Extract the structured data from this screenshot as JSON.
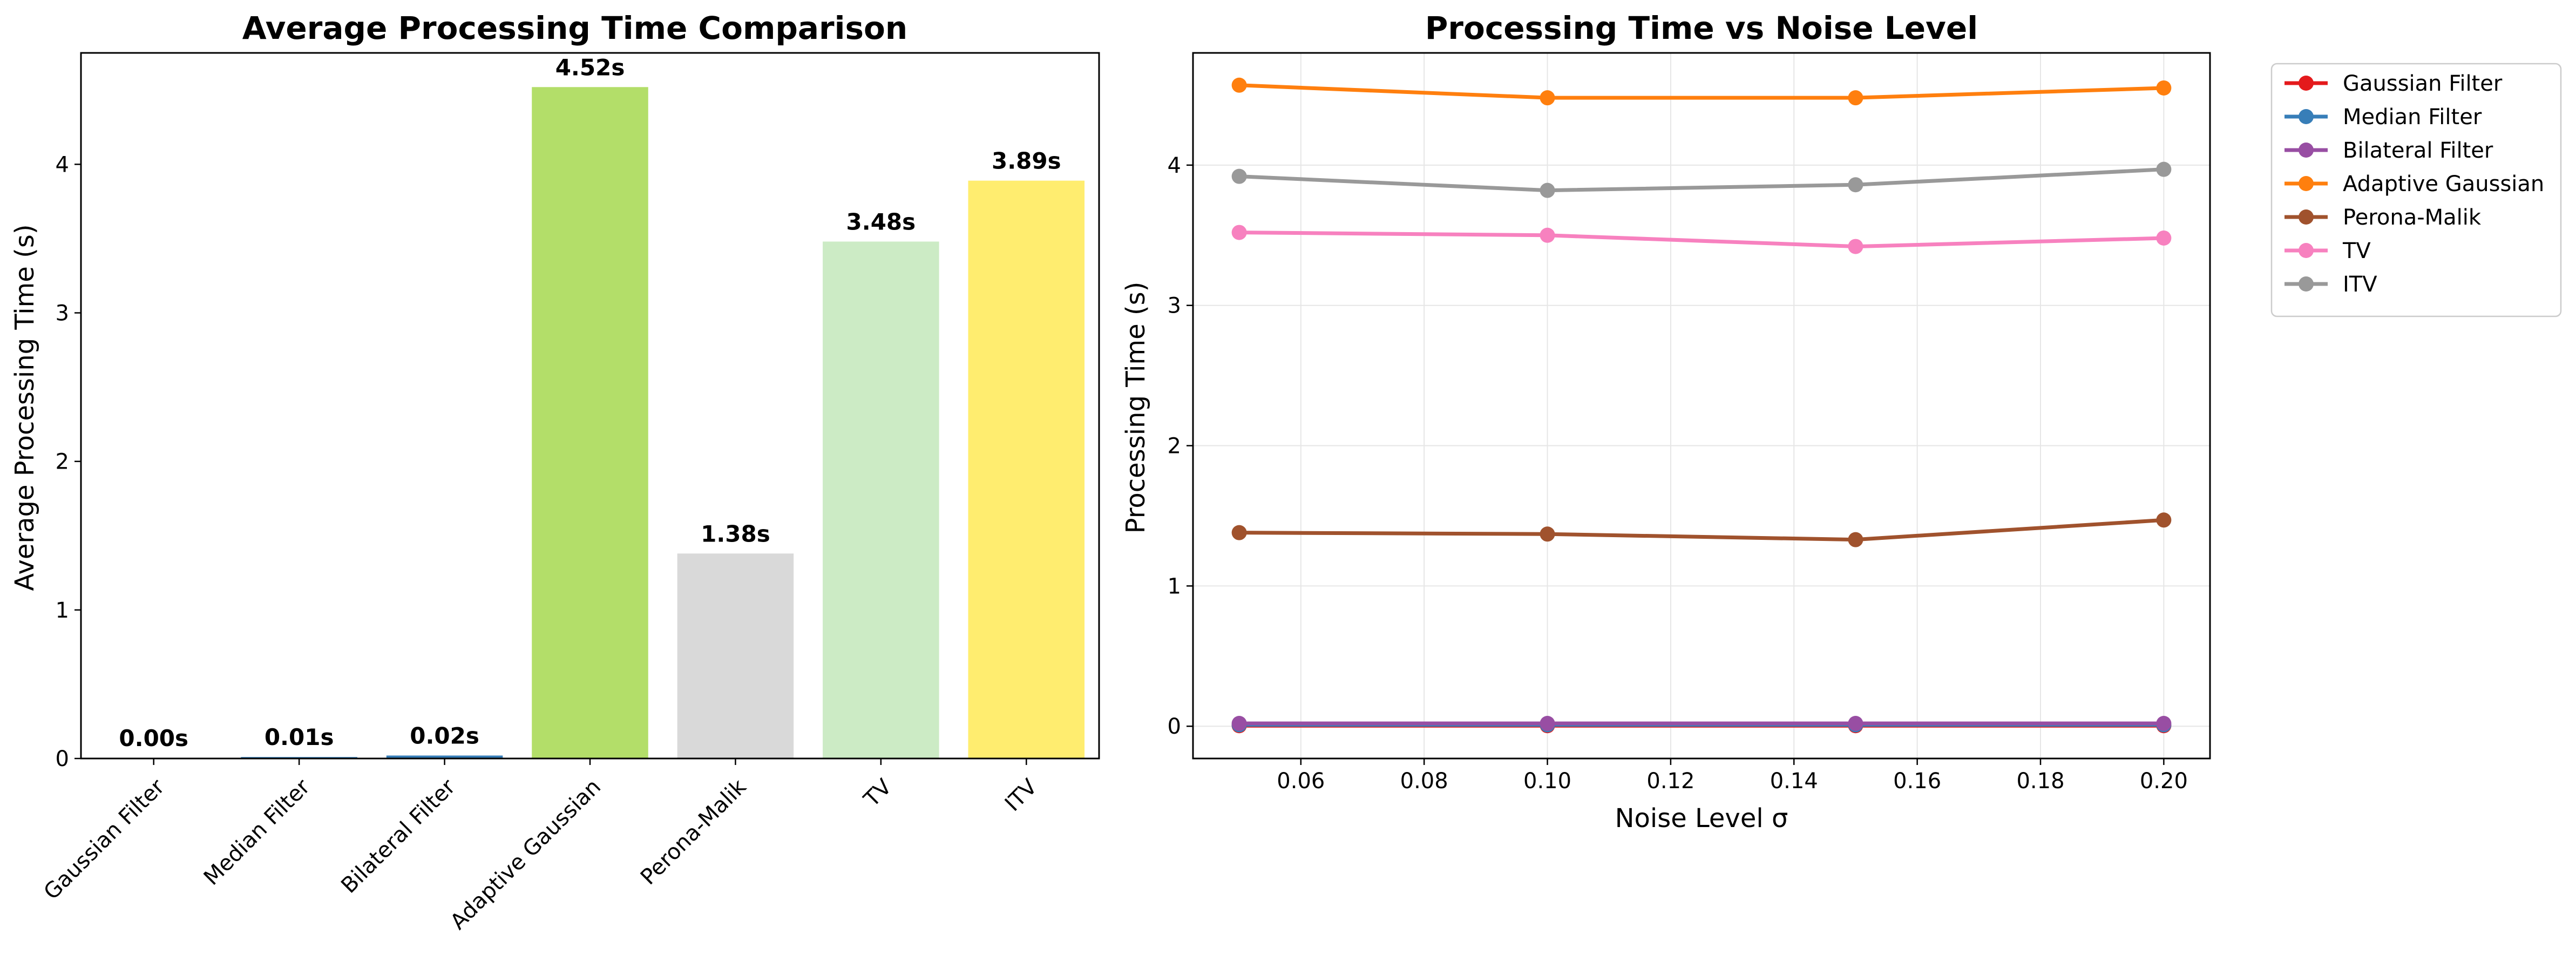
{
  "chart_data": [
    {
      "type": "bar",
      "title": "Average Processing Time Comparison",
      "xlabel": "",
      "ylabel": "Average Processing Time (s)",
      "ylim": [
        0,
        4.75
      ],
      "yticks": [
        0,
        1,
        2,
        3,
        4
      ],
      "grid": false,
      "categories": [
        "Gaussian Filter",
        "Median Filter",
        "Bilateral Filter",
        "Adaptive Gaussian",
        "Perona-Malik",
        "TV",
        "ITV"
      ],
      "values": [
        0.004,
        0.01,
        0.02,
        4.52,
        1.38,
        3.48,
        3.89
      ],
      "value_labels": [
        "0.00s",
        "0.01s",
        "0.02s",
        "4.52s",
        "1.38s",
        "3.48s",
        "3.89s"
      ],
      "colors": [
        "#e41a1c",
        "#377eb8",
        "#377eb8",
        "#b3de69",
        "#d9d9d9",
        "#ccebc5",
        "#ffed6f"
      ]
    },
    {
      "type": "line",
      "title": "Processing Time vs Noise Level",
      "xlabel": "Noise Level σ",
      "ylabel": "Processing Time (s)",
      "xlim": [
        0.0425,
        0.2075
      ],
      "ylim": [
        -0.23,
        4.8
      ],
      "xticks": [
        0.06,
        0.08,
        0.1,
        0.12,
        0.14,
        0.16,
        0.18,
        0.2
      ],
      "xtick_labels": [
        "0.06",
        "0.08",
        "0.10",
        "0.12",
        "0.14",
        "0.16",
        "0.18",
        "0.20"
      ],
      "yticks": [
        0,
        1,
        2,
        3,
        4
      ],
      "grid": true,
      "legend_position": "outside-right-top",
      "x": [
        0.05,
        0.1,
        0.15,
        0.2
      ],
      "series": [
        {
          "name": "Gaussian Filter",
          "color": "#e41a1c",
          "values": [
            0.004,
            0.004,
            0.004,
            0.004
          ]
        },
        {
          "name": "Median Filter",
          "color": "#377eb8",
          "values": [
            0.01,
            0.01,
            0.01,
            0.01
          ]
        },
        {
          "name": "Bilateral Filter",
          "color": "#984ea3",
          "values": [
            0.02,
            0.02,
            0.02,
            0.02
          ]
        },
        {
          "name": "Adaptive Gaussian",
          "color": "#ff7f0e",
          "values": [
            4.57,
            4.48,
            4.48,
            4.55
          ]
        },
        {
          "name": "Perona-Malik",
          "color": "#a0522d",
          "values": [
            1.38,
            1.37,
            1.33,
            1.47
          ]
        },
        {
          "name": "TV",
          "color": "#f781bf",
          "values": [
            3.52,
            3.5,
            3.42,
            3.48
          ]
        },
        {
          "name": "ITV",
          "color": "#999999",
          "values": [
            3.92,
            3.82,
            3.86,
            3.97
          ]
        }
      ]
    }
  ]
}
